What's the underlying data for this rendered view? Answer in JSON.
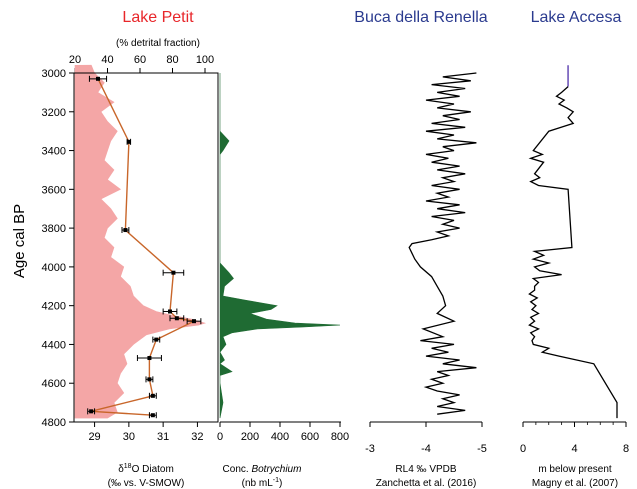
{
  "colors": {
    "lake_petit_title": "#e8262a",
    "other_titles": "#2b3b8f",
    "detrital_fill": "#f4a6a6",
    "d18o_line": "#c8662a",
    "botrychium_fill": "#1f6b33",
    "accesa_top": "#5a3fb0"
  },
  "titles": {
    "lake_petit": "Lake Petit",
    "renella": "Buca della Renella",
    "accesa": "Lake Accesa"
  },
  "y_axis": {
    "label": "Age cal BP",
    "ticks": [
      "3000",
      "3200",
      "3400",
      "3600",
      "3800",
      "4000",
      "4200",
      "4400",
      "4600",
      "4800"
    ]
  },
  "detrital_axis": {
    "label": "(% detrital fraction)",
    "ticks": [
      "20",
      "40",
      "60",
      "80",
      "100"
    ]
  },
  "d18o_axis": {
    "label_line1_prefix": "δ",
    "label_line1_sup": "18",
    "label_line1_suffix": "O Diatom",
    "label_line2": "(‰ vs. V-SMOW)",
    "ticks": [
      "29",
      "30",
      "31",
      "32"
    ]
  },
  "botrychium_axis": {
    "label_prefix": "Conc. ",
    "label_italic": "Botrychium",
    "label_line2_prefix": "(nb mL",
    "label_line2_sup": "-1",
    "label_line2_suffix": ")",
    "ticks": [
      "0",
      "200",
      "400",
      "600",
      "800"
    ]
  },
  "renella_axis": {
    "label_line1": "RL4 ‰ VPDB",
    "label_line2": "Zanchetta et al. (2016)",
    "ticks": [
      "-3",
      "-4",
      "-5"
    ]
  },
  "accesa_axis": {
    "label_line1": "m below present",
    "label_line2": "Magny et al. (2007)",
    "ticks": [
      "0",
      "4",
      "8"
    ]
  },
  "chart_data": [
    {
      "panel": "Lake Petit",
      "type": "area",
      "series": [
        {
          "name": "% detrital fraction",
          "x_axis": "top",
          "xlim": [
            20,
            100
          ],
          "age": [
            2960,
            3000,
            3050,
            3100,
            3150,
            3200,
            3250,
            3300,
            3350,
            3400,
            3450,
            3500,
            3550,
            3600,
            3650,
            3700,
            3750,
            3800,
            3850,
            3900,
            3950,
            4000,
            4050,
            4100,
            4150,
            4200,
            4230,
            4250,
            4270,
            4290,
            4300,
            4320,
            4350,
            4400,
            4450,
            4500,
            4550,
            4600,
            4650,
            4700,
            4750,
            4780
          ],
          "values": [
            30,
            32,
            38,
            34,
            44,
            36,
            40,
            46,
            42,
            40,
            38,
            44,
            40,
            48,
            36,
            42,
            46,
            40,
            38,
            44,
            42,
            50,
            48,
            54,
            56,
            62,
            70,
            80,
            92,
            100,
            96,
            78,
            64,
            56,
            50,
            52,
            48,
            46,
            50,
            44,
            46,
            40
          ]
        },
        {
          "name": "δ18O Diatom",
          "type": "line",
          "x_axis": "bottom",
          "xlim": [
            28.4,
            32.6
          ],
          "age": [
            3030,
            3355,
            3810,
            4030,
            4230,
            4265,
            4280,
            4375,
            4470,
            4580,
            4665,
            4745,
            4765
          ],
          "values": [
            29.1,
            30.0,
            29.9,
            31.3,
            31.2,
            31.4,
            31.9,
            30.8,
            30.6,
            30.6,
            30.7,
            28.9,
            30.7
          ],
          "x_error": [
            0.25,
            0.05,
            0.1,
            0.3,
            0.2,
            0.2,
            0.2,
            0.1,
            0.35,
            0.1,
            0.1,
            0.1,
            0.1
          ]
        }
      ]
    },
    {
      "panel": "Botrychium",
      "type": "area",
      "xlim": [
        0,
        800
      ],
      "age": [
        3000,
        3300,
        3350,
        3400,
        3420,
        3500,
        3800,
        3980,
        4030,
        4060,
        4100,
        4150,
        4170,
        4200,
        4220,
        4240,
        4270,
        4290,
        4300,
        4310,
        4320,
        4340,
        4360,
        4400,
        4440,
        4480,
        4500,
        4540,
        4560,
        4600,
        4700,
        4780
      ],
      "values": [
        0,
        0,
        60,
        20,
        0,
        0,
        0,
        0,
        60,
        90,
        30,
        20,
        160,
        380,
        340,
        200,
        310,
        500,
        800,
        560,
        250,
        80,
        20,
        40,
        0,
        30,
        0,
        80,
        0,
        0,
        20,
        0
      ]
    },
    {
      "panel": "Buca della Renella",
      "type": "line",
      "xlabel": "RL4 ‰ VPDB Zanchetta et al. (2016)",
      "xlim": [
        -3,
        -5
      ],
      "age": [
        3000,
        3020,
        3040,
        3060,
        3080,
        3100,
        3120,
        3140,
        3160,
        3180,
        3200,
        3220,
        3240,
        3260,
        3280,
        3300,
        3320,
        3340,
        3360,
        3380,
        3400,
        3420,
        3440,
        3460,
        3480,
        3500,
        3520,
        3540,
        3560,
        3580,
        3600,
        3620,
        3640,
        3660,
        3680,
        3700,
        3720,
        3740,
        3760,
        3780,
        3800,
        3820,
        3840,
        3860,
        3880,
        3900,
        3930,
        3960,
        4000,
        4050,
        4100,
        4150,
        4200,
        4240,
        4280,
        4320,
        4360,
        4380,
        4400,
        4420,
        4440,
        4460,
        4480,
        4500,
        4520,
        4540,
        4560,
        4580,
        4600,
        4620,
        4640,
        4660,
        4680,
        4700,
        4720,
        4740,
        4760
      ],
      "values": [
        -4.9,
        -4.3,
        -4.8,
        -4.1,
        -4.7,
        -4.2,
        -4.6,
        -4.0,
        -4.5,
        -4.2,
        -4.8,
        -4.3,
        -4.6,
        -4.1,
        -4.7,
        -4.0,
        -4.5,
        -4.2,
        -4.9,
        -4.3,
        -4.5,
        -4.0,
        -4.4,
        -4.1,
        -4.6,
        -4.2,
        -4.7,
        -4.3,
        -4.5,
        -4.1,
        -4.6,
        -4.2,
        -4.4,
        -4.0,
        -4.6,
        -4.2,
        -4.7,
        -4.1,
        -4.5,
        -4.3,
        -4.6,
        -4.2,
        -4.4,
        -4.1,
        -3.75,
        -3.7,
        -3.75,
        -3.8,
        -3.9,
        -4.1,
        -4.2,
        -4.3,
        -4.35,
        -4.2,
        -4.5,
        -3.95,
        -4.3,
        -3.9,
        -4.5,
        -4.1,
        -4.4,
        -4.0,
        -4.6,
        -4.3,
        -4.9,
        -4.2,
        -4.4,
        -4.1,
        -4.3,
        -4.0,
        -4.2,
        -4.6,
        -4.3,
        -4.5,
        -4.2,
        -4.7,
        -4.2
      ]
    },
    {
      "panel": "Lake Accesa",
      "type": "line",
      "xlabel": "m below present Magny et al. (2007)",
      "xlim": [
        0,
        8
      ],
      "age": [
        3000,
        3070,
        3100,
        3120,
        3140,
        3160,
        3180,
        3200,
        3230,
        3260,
        3300,
        3400,
        3420,
        3440,
        3460,
        3520,
        3540,
        3560,
        3580,
        3600,
        3900,
        3920,
        3940,
        3960,
        3980,
        4000,
        4020,
        4040,
        4060,
        4080,
        4100,
        4120,
        4140,
        4160,
        4180,
        4200,
        4220,
        4240,
        4260,
        4280,
        4300,
        4320,
        4340,
        4360,
        4380,
        4400,
        4420,
        4440,
        4460,
        4500,
        4700,
        4780
      ],
      "values": [
        3.5,
        3.5,
        3.0,
        2.6,
        3.2,
        2.8,
        3.4,
        3.9,
        3.5,
        3.9,
        2.0,
        0.8,
        1.5,
        0.6,
        1.6,
        0.9,
        1.3,
        0.6,
        1.2,
        3.5,
        3.8,
        0.9,
        1.6,
        0.8,
        2.0,
        0.9,
        1.3,
        3.0,
        0.8,
        1.2,
        0.9,
        0.9,
        0.5,
        1.1,
        0.6,
        1.0,
        0.7,
        1.2,
        0.6,
        0.9,
        0.5,
        1.2,
        0.6,
        0.9,
        0.7,
        0.8,
        2.0,
        1.5,
        2.8,
        5.5,
        7.3,
        7.3
      ]
    }
  ]
}
